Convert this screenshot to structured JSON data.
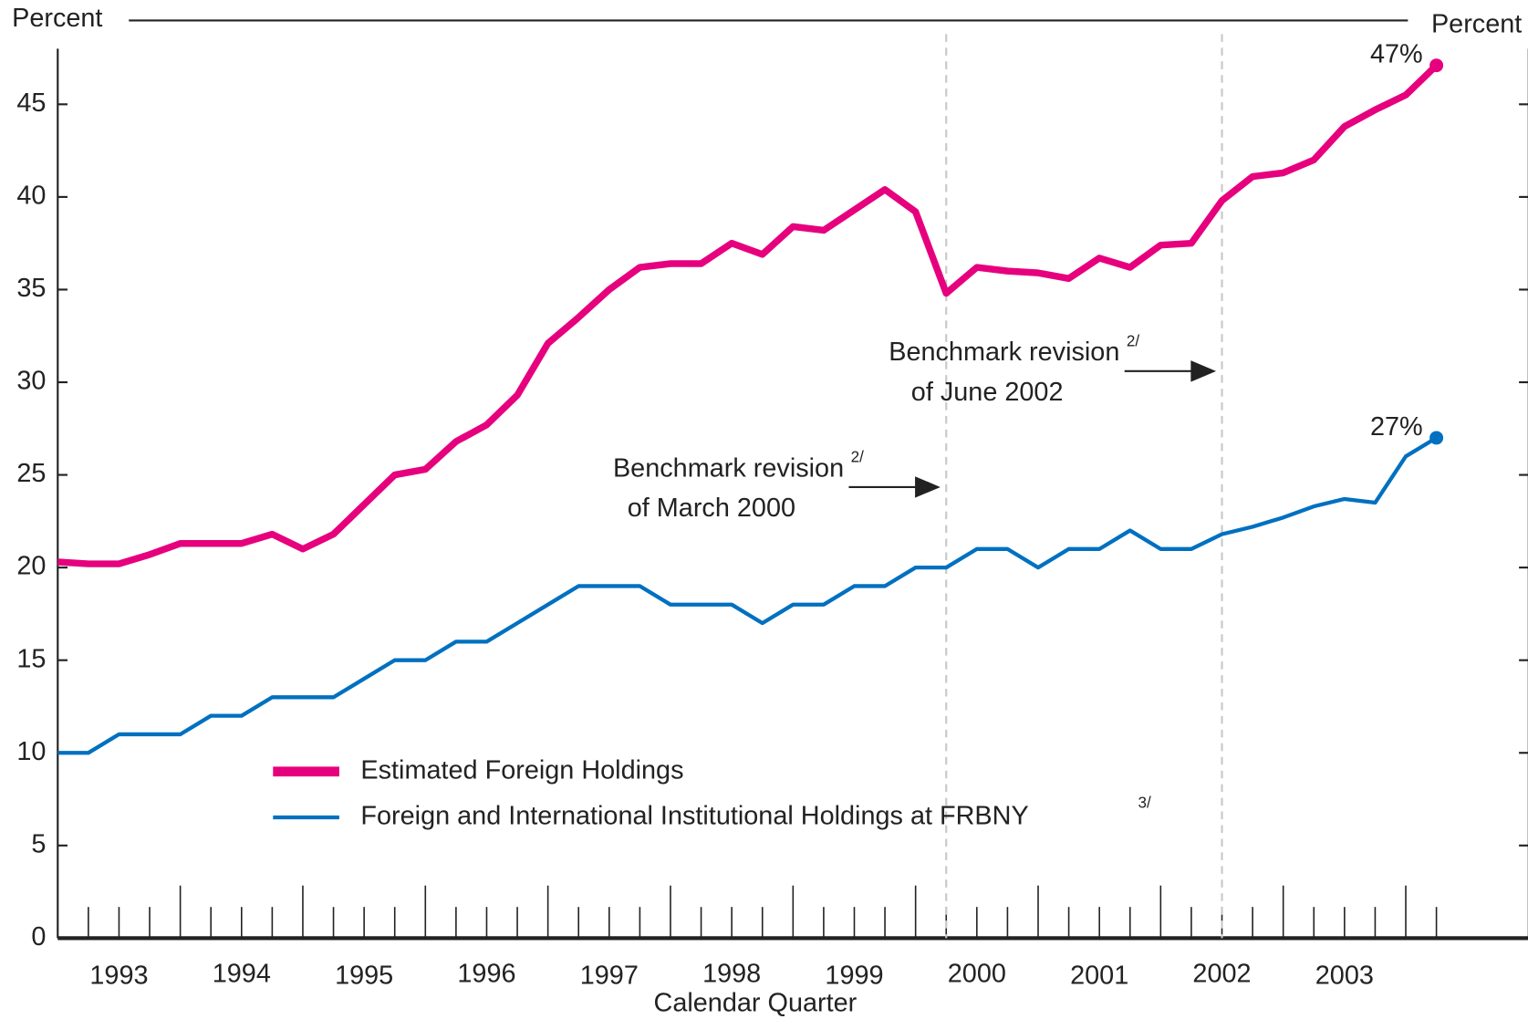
{
  "chart_data": {
    "type": "line",
    "y_label_left": "Percent",
    "y_label_right": "Percent",
    "x_label": "Calendar Quarter",
    "year_labels": [
      "1993",
      "1994",
      "1995",
      "1996",
      "1997",
      "1998",
      "1999",
      "2000",
      "2001",
      "2002",
      "2003"
    ],
    "categories": [
      null,
      null,
      null,
      null,
      null,
      null,
      null,
      null,
      null,
      null,
      null,
      null,
      null,
      null,
      null,
      null,
      null,
      null,
      null,
      null,
      null,
      null,
      null,
      null,
      null,
      null,
      null,
      null,
      null,
      null,
      null,
      null,
      null,
      null,
      null,
      null,
      null,
      null,
      null,
      null,
      null,
      null,
      null,
      null,
      null,
      null
    ],
    "series": [
      {
        "name": "Estimated Foreign Holdings",
        "color": "#e6007e",
        "values": [
          20.3,
          20.2,
          20.2,
          20.7,
          21.3,
          21.3,
          21.3,
          21.8,
          21.0,
          21.8,
          23.4,
          25.0,
          25.3,
          26.8,
          27.7,
          29.3,
          32.1,
          33.5,
          35.0,
          36.2,
          36.4,
          36.4,
          37.5,
          36.9,
          38.4,
          38.2,
          39.3,
          40.4,
          39.2,
          34.8,
          36.2,
          36.0,
          35.9,
          35.6,
          36.7,
          36.2,
          37.4,
          37.5,
          39.8,
          41.1,
          41.3,
          42.0,
          43.8,
          44.7,
          45.5,
          47.1
        ],
        "end_label": "47%"
      },
      {
        "name": "Foreign and International Institutional Holdings at FRBNY",
        "footnote": "3/",
        "color": "#0070c0",
        "values": [
          10,
          10,
          11,
          11,
          11,
          12,
          12,
          13,
          13,
          13,
          14,
          15,
          15,
          16,
          16,
          17,
          18,
          19,
          19,
          19,
          18,
          18,
          18,
          17,
          18,
          18,
          19,
          19,
          20,
          20,
          21,
          21,
          20,
          21,
          21,
          22,
          21,
          21,
          21.8,
          22.2,
          22.7,
          23.3,
          23.7,
          23.5,
          26.0,
          27.0
        ],
        "end_label": "27%"
      }
    ],
    "benchmark_revisions": [
      {
        "lines": [
          "Benchmark revision",
          "of March 2000"
        ],
        "footnote": "2/",
        "index": 29
      },
      {
        "lines": [
          "Benchmark revision",
          "of June 2002"
        ],
        "footnote": "2/",
        "index": 38
      }
    ],
    "ylim": [
      0,
      48
    ],
    "yticks": [
      0,
      5,
      10,
      15,
      20,
      25,
      30,
      35,
      40,
      45
    ],
    "grid": false
  }
}
